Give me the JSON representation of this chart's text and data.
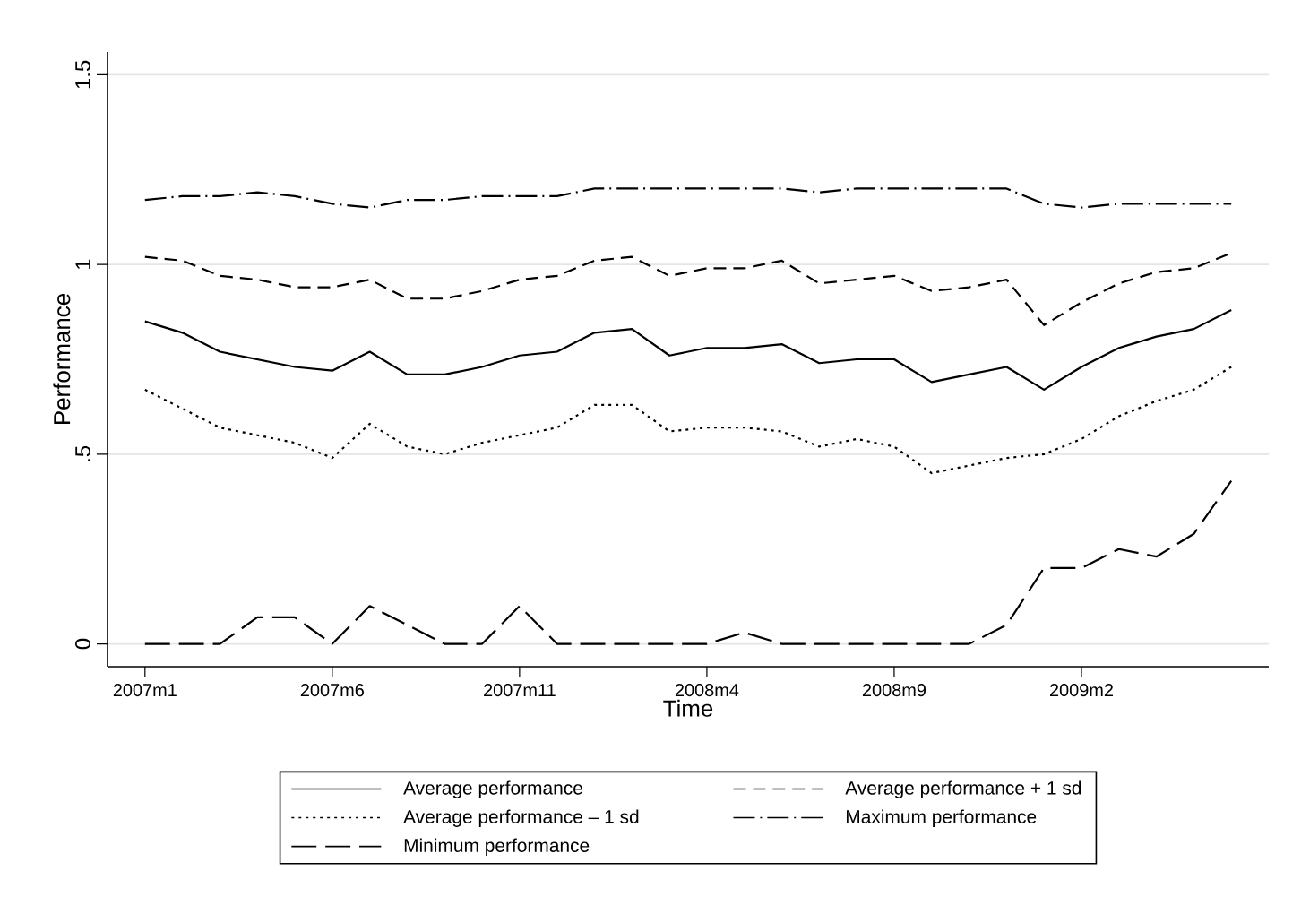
{
  "chart_data": {
    "type": "line",
    "xlabel": "Time",
    "ylabel": "Performance",
    "x": [
      "2007-01",
      "2007-02",
      "2007-03",
      "2007-04",
      "2007-05",
      "2007-06",
      "2007-07",
      "2007-08",
      "2007-09",
      "2007-10",
      "2007-11",
      "2007-12",
      "2008-01",
      "2008-02",
      "2008-03",
      "2008-04",
      "2008-05",
      "2008-06",
      "2008-07",
      "2008-08",
      "2008-09",
      "2008-10",
      "2008-11",
      "2008-12",
      "2009-01",
      "2009-02",
      "2009-03",
      "2009-04",
      "2009-05",
      "2009-06"
    ],
    "series": [
      {
        "name": "Average performance",
        "color": "#000000",
        "line_style": "solid",
        "values": [
          0.85,
          0.82,
          0.77,
          0.75,
          0.73,
          0.72,
          0.77,
          0.71,
          0.71,
          0.73,
          0.76,
          0.77,
          0.82,
          0.83,
          0.76,
          0.78,
          0.78,
          0.79,
          0.74,
          0.75,
          0.75,
          0.69,
          0.71,
          0.73,
          0.67,
          0.73,
          0.78,
          0.81,
          0.83,
          0.88
        ]
      },
      {
        "name": "Average performance + 1 sd",
        "color": "#000000",
        "line_style": "dashed",
        "values": [
          1.02,
          1.01,
          0.97,
          0.96,
          0.94,
          0.94,
          0.96,
          0.91,
          0.91,
          0.93,
          0.96,
          0.97,
          1.01,
          1.02,
          0.97,
          0.99,
          0.99,
          1.01,
          0.95,
          0.96,
          0.97,
          0.93,
          0.94,
          0.96,
          0.84,
          0.9,
          0.95,
          0.98,
          0.99,
          1.03
        ]
      },
      {
        "name": "Average performance – 1 sd",
        "color": "#000000",
        "line_style": "dotted",
        "values": [
          0.67,
          0.62,
          0.57,
          0.55,
          0.53,
          0.49,
          0.58,
          0.52,
          0.5,
          0.53,
          0.55,
          0.57,
          0.63,
          0.63,
          0.56,
          0.57,
          0.57,
          0.56,
          0.52,
          0.54,
          0.52,
          0.45,
          0.47,
          0.49,
          0.5,
          0.54,
          0.6,
          0.64,
          0.67,
          0.73
        ]
      },
      {
        "name": "Maximum performance",
        "color": "#000000",
        "line_style": "dashdot",
        "values": [
          1.17,
          1.18,
          1.18,
          1.19,
          1.18,
          1.16,
          1.15,
          1.17,
          1.17,
          1.18,
          1.18,
          1.18,
          1.2,
          1.2,
          1.2,
          1.2,
          1.2,
          1.2,
          1.19,
          1.2,
          1.2,
          1.2,
          1.2,
          1.2,
          1.16,
          1.15,
          1.16,
          1.16,
          1.16,
          1.16
        ]
      },
      {
        "name": "Minimum performance",
        "color": "#000000",
        "line_style": "longdashed",
        "values": [
          0,
          0,
          0,
          0.07,
          0.07,
          0,
          0.1,
          0.05,
          0,
          0,
          0.1,
          0,
          0,
          0,
          0,
          0,
          0.03,
          0,
          0,
          0,
          0,
          0,
          0,
          0.05,
          0.2,
          0.2,
          0.25,
          0.23,
          0.29,
          0.43
        ]
      }
    ],
    "xlim": [
      "2006-12",
      "2009-07"
    ],
    "xticks": [
      {
        "value": "2007-01",
        "label": "2007m1"
      },
      {
        "value": "2007-06",
        "label": "2007m6"
      },
      {
        "value": "2007-11",
        "label": "2007m11"
      },
      {
        "value": "2008-04",
        "label": "2008m4"
      },
      {
        "value": "2008-09",
        "label": "2008m9"
      },
      {
        "value": "2009-02",
        "label": "2009m2"
      }
    ],
    "ylim": [
      -0.06,
      1.56
    ],
    "yticks": [
      0,
      {
        "value": 0.5,
        "label": ".5"
      },
      1,
      1.5
    ],
    "grid": "y",
    "legend": "bottom",
    "marker": "none"
  }
}
